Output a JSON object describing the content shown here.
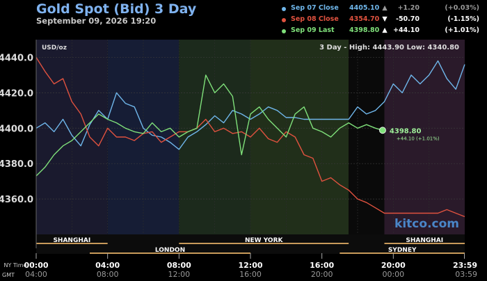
{
  "header": {
    "title": "Gold Spot (Bid) 3 Day",
    "date": "September 09, 2026 19:20"
  },
  "legend": [
    {
      "label": "Sep 07 Close",
      "value": "4405.10",
      "arrow": "▲",
      "change": "+1.20",
      "pct": "(+0.03%)",
      "color": "#6fb6ea",
      "arrow_color": "#9a9a9a",
      "change_color": "#9a9a9a"
    },
    {
      "label": "Sep 08 Close",
      "value": "4354.70",
      "arrow": "▼",
      "change": "-50.70",
      "pct": "(-1.15%)",
      "color": "#e0523f",
      "arrow_color": "#ffffff",
      "change_color": "#ffffff"
    },
    {
      "label": "Sep 09 Last",
      "value": "4398.80",
      "arrow": "▲",
      "change": "+44.10",
      "pct": "(+1.01%)",
      "color": "#7fe07a",
      "arrow_color": "#ffffff",
      "change_color": "#ffffff"
    }
  ],
  "chart_data": {
    "type": "line",
    "unit_label": "USD/oz",
    "stats": "3 Day - High: 4443.90  Low: 4340.80",
    "watermark": "kitco.com",
    "ylim": [
      4340,
      4450
    ],
    "y_ticks": [
      4440.0,
      4420.0,
      4400.0,
      4380.0,
      4360.0
    ],
    "xlim": [
      0,
      24
    ],
    "x_row1_label": "NY Time",
    "x_row2_label": "GMT",
    "x_ticks_ny": [
      "00:00",
      "04:00",
      "08:00",
      "12:00",
      "16:00",
      "20:00",
      "23:59"
    ],
    "x_ticks_gmt": [
      "04:00",
      "08:00",
      "12:00",
      "16:00",
      "20:00",
      "00:00",
      "03:59"
    ],
    "x_tick_hours": [
      0,
      4,
      8,
      12,
      16,
      20,
      23.98
    ],
    "sessions_top": [
      {
        "name": "SHANGHAI",
        "start": 0,
        "end": 4
      },
      {
        "name": "NEW YORK",
        "start": 8,
        "end": 17.5
      },
      {
        "name": "SHANGHAI",
        "start": 19.5,
        "end": 24
      }
    ],
    "sessions_bottom": [
      {
        "name": "LONDON",
        "start": 3,
        "end": 12
      },
      {
        "name": "SYDNEY",
        "start": 17,
        "end": 24
      }
    ],
    "band_hours": [
      0,
      4,
      8,
      12,
      17.5,
      19.5,
      24
    ],
    "band_colors": [
      "#1a1a2e",
      "#161d35",
      "#1c2a1c",
      "#212f1a",
      "#0a0a0a",
      "#2a1a2a"
    ],
    "last_point": {
      "label": "4398.80",
      "change": "+44.10 (+1.01%)",
      "x": 19.4,
      "y": 4398.8
    },
    "series": [
      {
        "name": "Sep 07",
        "color": "#6fb6ea",
        "x": [
          0,
          0.5,
          1,
          1.5,
          2,
          2.5,
          3,
          3.5,
          4,
          4.5,
          5,
          5.5,
          6,
          6.5,
          7,
          7.5,
          8,
          8.5,
          9,
          9.5,
          10,
          10.5,
          11,
          11.5,
          12,
          12.5,
          13,
          13.5,
          14,
          14.5,
          15,
          15.5,
          16,
          16.5,
          17,
          17.5,
          18,
          18.5,
          19,
          19.5,
          20,
          20.5,
          21,
          21.5,
          22,
          22.5,
          23,
          23.5,
          24
        ],
        "values": [
          4400,
          4403,
          4398,
          4405,
          4396,
          4390,
          4402,
          4410,
          4405,
          4420,
          4414,
          4412,
          4400,
          4396,
          4395,
          4392,
          4388,
          4395,
          4398,
          4402,
          4407,
          4403,
          4410,
          4408,
          4405,
          4408,
          4412,
          4410,
          4406,
          4406,
          4405,
          4405,
          4405,
          4405,
          4405,
          4405,
          4412,
          4408,
          4410,
          4415,
          4425,
          4420,
          4430,
          4425,
          4430,
          4438,
          4428,
          4422,
          4436
        ]
      },
      {
        "name": "Sep 08",
        "color": "#e0523f",
        "x": [
          0,
          0.5,
          1,
          1.5,
          2,
          2.5,
          3,
          3.5,
          4,
          4.5,
          5,
          5.5,
          6,
          6.5,
          7,
          7.5,
          8,
          8.5,
          9,
          9.5,
          10,
          10.5,
          11,
          11.5,
          12,
          12.5,
          13,
          13.5,
          14,
          14.5,
          15,
          15.5,
          16,
          16.5,
          17,
          17.5,
          18,
          18.5,
          19,
          19.5,
          20,
          20.5,
          21,
          21.5,
          22,
          22.5,
          23,
          23.5,
          24
        ],
        "values": [
          4440,
          4432,
          4425,
          4428,
          4415,
          4408,
          4395,
          4390,
          4400,
          4395,
          4395,
          4393,
          4397,
          4398,
          4392,
          4395,
          4398,
          4398,
          4400,
          4405,
          4398,
          4400,
          4397,
          4398,
          4395,
          4400,
          4394,
          4392,
          4398,
          4395,
          4385,
          4383,
          4370,
          4372,
          4368,
          4365,
          4360,
          4358,
          4355,
          4352,
          4352,
          4352,
          4352,
          4352,
          4352,
          4352,
          4354,
          4352,
          4350
        ]
      },
      {
        "name": "Sep 09",
        "color": "#7fe07a",
        "x": [
          0,
          0.5,
          1,
          1.5,
          2,
          2.5,
          3,
          3.5,
          4,
          4.5,
          5,
          5.5,
          6,
          6.5,
          7,
          7.5,
          8,
          8.5,
          9,
          9.5,
          10,
          10.5,
          11,
          11.5,
          12,
          12.5,
          13,
          13.5,
          14,
          14.5,
          15,
          15.5,
          16,
          16.5,
          17,
          17.5,
          18,
          18.5,
          19,
          19.4
        ],
        "values": [
          4373,
          4378,
          4385,
          4390,
          4393,
          4398,
          4403,
          4408,
          4405,
          4403,
          4400,
          4398,
          4397,
          4403,
          4398,
          4400,
          4395,
          4398,
          4400,
          4430,
          4420,
          4425,
          4418,
          4385,
          4408,
          4412,
          4405,
          4400,
          4395,
          4408,
          4412,
          4400,
          4398,
          4395,
          4400,
          4403,
          4400,
          4402,
          4400,
          4398.8
        ]
      }
    ]
  }
}
